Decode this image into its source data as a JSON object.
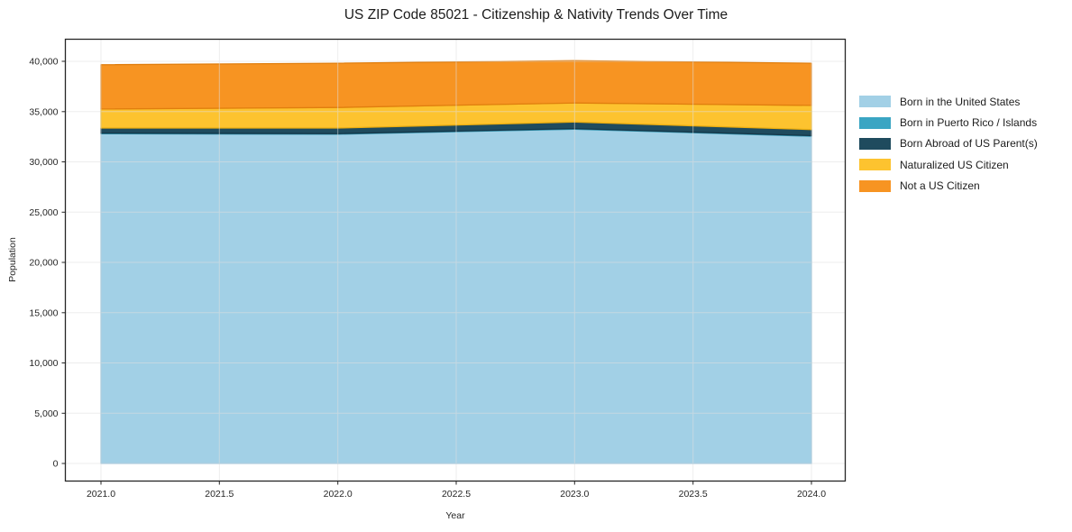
{
  "title": "US ZIP Code 85021 - Citizenship & Nativity Trends Over Time",
  "chart_data": {
    "type": "area",
    "stacked": true,
    "title": "US ZIP Code 85021 - Citizenship & Nativity Trends Over Time",
    "xlabel": "Year",
    "ylabel": "Population",
    "x": [
      2021,
      2022,
      2023,
      2024
    ],
    "xlim": [
      2021.0,
      2024.0
    ],
    "ylim": [
      0,
      40000
    ],
    "grid": true,
    "legend_position": "right-outside",
    "x_tick_values": [
      2021.0,
      2021.5,
      2022.0,
      2022.5,
      2023.0,
      2023.5,
      2024.0
    ],
    "x_tick_labels": [
      "2021.0",
      "2021.5",
      "2022.0",
      "2022.5",
      "2023.0",
      "2023.5",
      "2024.0"
    ],
    "y_tick_values": [
      0,
      5000,
      10000,
      15000,
      20000,
      25000,
      30000,
      35000,
      40000
    ],
    "y_tick_labels": [
      "0",
      "5,000",
      "10,000",
      "15,000",
      "20,000",
      "25,000",
      "30,000",
      "35,000",
      "40,000"
    ],
    "series": [
      {
        "name": "Born in the United States",
        "color": "#a2d0e6",
        "edge": "#8cc0da",
        "values": [
          32800,
          32750,
          33250,
          32550
        ]
      },
      {
        "name": "Born in Puerto Rico / Islands",
        "color": "#3aa5c3",
        "edge": "#2f93ae",
        "values": [
          60,
          60,
          60,
          60
        ]
      },
      {
        "name": "Born Abroad of US Parent(s)",
        "color": "#1f4b5e",
        "edge": "#16384a",
        "values": [
          500,
          550,
          650,
          600
        ]
      },
      {
        "name": "Naturalized US Citizen",
        "color": "#fdc32f",
        "edge": "#ecae10",
        "values": [
          1900,
          2050,
          1900,
          2400
        ]
      },
      {
        "name": "Not a US Citizen",
        "color": "#f79422",
        "edge": "#e07e0e",
        "values": [
          4400,
          4400,
          4200,
          4200
        ]
      }
    ],
    "grid_color": "#e0e0e0",
    "spine_color": "#262626",
    "tick_label_color": "#262626"
  }
}
